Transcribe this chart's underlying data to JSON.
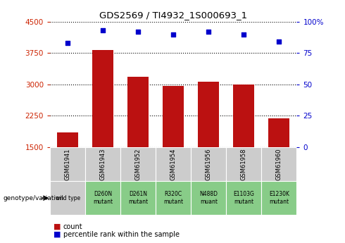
{
  "title": "GDS2569 / TI4932_1S000693_1",
  "samples": [
    "GSM61941",
    "GSM61943",
    "GSM61952",
    "GSM61954",
    "GSM61956",
    "GSM61958",
    "GSM61960"
  ],
  "genotypes": [
    "wild type",
    "D260N\nmutant",
    "D261N\nmutant",
    "R320C\nmutant",
    "N488D\nmuant",
    "E1103G\nmutant",
    "E1230K\nmutant"
  ],
  "counts": [
    1850,
    3820,
    3180,
    2960,
    3060,
    2990,
    2180
  ],
  "percentiles": [
    83,
    93,
    92,
    90,
    92,
    90,
    84
  ],
  "bar_color": "#BB1111",
  "dot_color": "#0000CC",
  "ymin": 1500,
  "ymax": 4500,
  "yticks": [
    1500,
    2250,
    3000,
    3750,
    4500
  ],
  "y2min": 0,
  "y2max": 100,
  "y2ticks": [
    0,
    25,
    50,
    75,
    100
  ],
  "sample_bg": "#CCCCCC",
  "genotype_bg_wt": "#CCCCCC",
  "genotype_bg_mut": "#88CC88",
  "ylabel_color": "#CC2200",
  "y2label_color": "#0000CC",
  "legend_count_color": "#BB1111",
  "legend_dot_color": "#0000CC"
}
